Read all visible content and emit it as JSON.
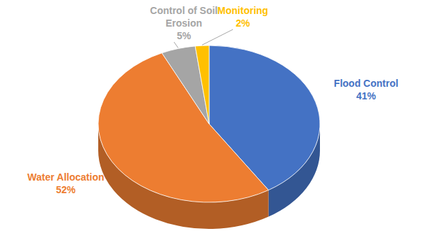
{
  "chart_data": {
    "type": "pie",
    "categories": [
      "Flood Control",
      "Water Allocation",
      "Control of Soil Erosion",
      "Monitoring"
    ],
    "values": [
      41,
      52,
      5,
      2
    ],
    "value_labels": [
      "41%",
      "52%",
      "5%",
      "2%"
    ],
    "colors": [
      "#4472c4",
      "#ed7d31",
      "#a5a5a5",
      "#ffc000"
    ],
    "data_labels": true
  }
}
